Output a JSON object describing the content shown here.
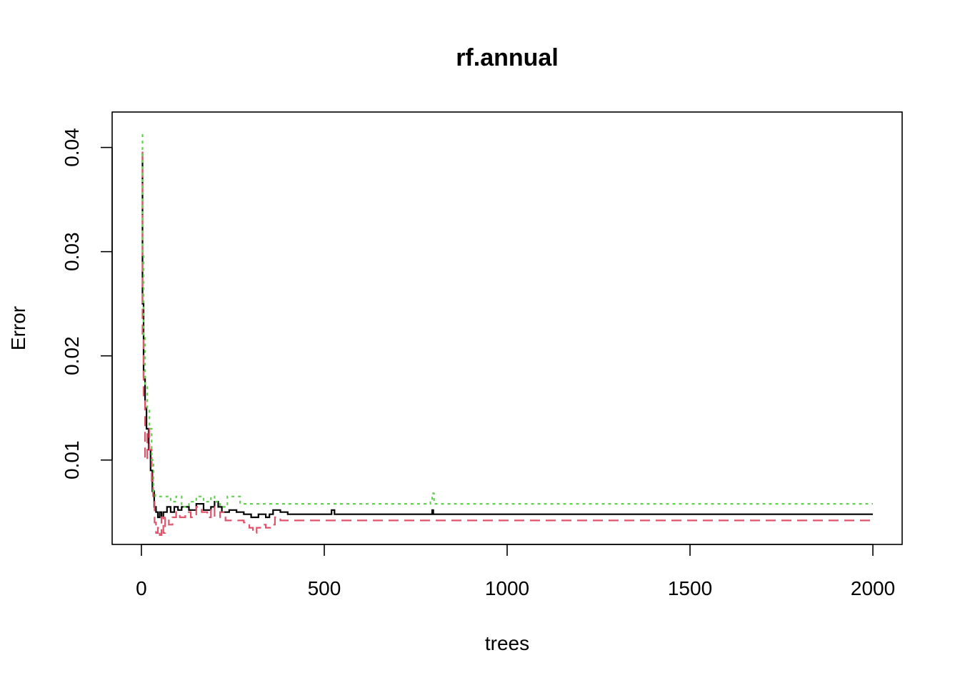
{
  "chart_data": {
    "type": "line",
    "title": "rf.annual",
    "xlabel": "trees",
    "ylabel": "Error",
    "xlim": [
      -80,
      2080
    ],
    "ylim": [
      0.0019,
      0.0434
    ],
    "x_ticks": [
      0,
      500,
      1000,
      1500,
      2000
    ],
    "y_ticks": [
      0.01,
      0.02,
      0.03,
      0.04
    ],
    "x_tick_labels": [
      "0",
      "500",
      "1000",
      "1500",
      "2000"
    ],
    "y_tick_labels": [
      "0.01",
      "0.02",
      "0.03",
      "0.04"
    ],
    "grid": false,
    "legend": "none",
    "series": [
      {
        "color": "#000000",
        "dash": "",
        "points": [
          [
            1,
            0.0395
          ],
          [
            3,
            0.025
          ],
          [
            6,
            0.018
          ],
          [
            10,
            0.015
          ],
          [
            14,
            0.013
          ],
          [
            20,
            0.011
          ],
          [
            25,
            0.009
          ],
          [
            30,
            0.007
          ],
          [
            35,
            0.0055
          ],
          [
            40,
            0.005
          ],
          [
            45,
            0.0045
          ],
          [
            50,
            0.005
          ],
          [
            55,
            0.0045
          ],
          [
            60,
            0.005
          ],
          [
            70,
            0.0055
          ],
          [
            80,
            0.005
          ],
          [
            90,
            0.0055
          ],
          [
            100,
            0.0052
          ],
          [
            110,
            0.0055
          ],
          [
            130,
            0.0052
          ],
          [
            150,
            0.0058
          ],
          [
            170,
            0.0052
          ],
          [
            190,
            0.0055
          ],
          [
            200,
            0.006
          ],
          [
            210,
            0.0055
          ],
          [
            220,
            0.005
          ],
          [
            240,
            0.0052
          ],
          [
            260,
            0.005
          ],
          [
            280,
            0.0048
          ],
          [
            300,
            0.0045
          ],
          [
            320,
            0.0048
          ],
          [
            340,
            0.0045
          ],
          [
            350,
            0.0048
          ],
          [
            360,
            0.0052
          ],
          [
            380,
            0.005
          ],
          [
            400,
            0.0048
          ],
          [
            515,
            0.0048
          ],
          [
            520,
            0.0052
          ],
          [
            528,
            0.0048
          ],
          [
            790,
            0.0048
          ],
          [
            795,
            0.0052
          ],
          [
            798,
            0.0048
          ],
          [
            2000,
            0.0048
          ]
        ]
      },
      {
        "color": "#DF536B",
        "dash": "14,8",
        "points": [
          [
            1,
            0.0395
          ],
          [
            3,
            0.022
          ],
          [
            6,
            0.016
          ],
          [
            10,
            0.01
          ],
          [
            16,
            0.013
          ],
          [
            22,
            0.011
          ],
          [
            28,
            0.008
          ],
          [
            32,
            0.006
          ],
          [
            36,
            0.004
          ],
          [
            40,
            0.003
          ],
          [
            45,
            0.0035
          ],
          [
            50,
            0.0028
          ],
          [
            55,
            0.0045
          ],
          [
            60,
            0.003
          ],
          [
            65,
            0.0045
          ],
          [
            75,
            0.0038
          ],
          [
            85,
            0.0045
          ],
          [
            95,
            0.005
          ],
          [
            105,
            0.0045
          ],
          [
            120,
            0.005
          ],
          [
            135,
            0.0045
          ],
          [
            150,
            0.0055
          ],
          [
            165,
            0.005
          ],
          [
            180,
            0.0045
          ],
          [
            190,
            0.0055
          ],
          [
            200,
            0.0045
          ],
          [
            215,
            0.005
          ],
          [
            230,
            0.0042
          ],
          [
            260,
            0.0042
          ],
          [
            280,
            0.004
          ],
          [
            295,
            0.0035
          ],
          [
            305,
            0.003
          ],
          [
            315,
            0.0035
          ],
          [
            325,
            0.0038
          ],
          [
            340,
            0.0035
          ],
          [
            355,
            0.0038
          ],
          [
            365,
            0.0045
          ],
          [
            380,
            0.0042
          ],
          [
            400,
            0.0042
          ],
          [
            2000,
            0.0042
          ]
        ]
      },
      {
        "color": "#61D04F",
        "dash": "4,5",
        "points": [
          [
            1,
            0.0412
          ],
          [
            3,
            0.03
          ],
          [
            6,
            0.022
          ],
          [
            10,
            0.017
          ],
          [
            16,
            0.015
          ],
          [
            22,
            0.013
          ],
          [
            28,
            0.01
          ],
          [
            33,
            0.007
          ],
          [
            38,
            0.0065
          ],
          [
            60,
            0.0065
          ],
          [
            80,
            0.006
          ],
          [
            95,
            0.0065
          ],
          [
            110,
            0.0055
          ],
          [
            130,
            0.006
          ],
          [
            150,
            0.0065
          ],
          [
            170,
            0.006
          ],
          [
            190,
            0.0065
          ],
          [
            200,
            0.006
          ],
          [
            215,
            0.0055
          ],
          [
            235,
            0.0065
          ],
          [
            255,
            0.0065
          ],
          [
            270,
            0.0058
          ],
          [
            785,
            0.0058
          ],
          [
            790,
            0.0062
          ],
          [
            795,
            0.0068
          ],
          [
            800,
            0.0058
          ],
          [
            2000,
            0.0058
          ]
        ]
      }
    ]
  }
}
